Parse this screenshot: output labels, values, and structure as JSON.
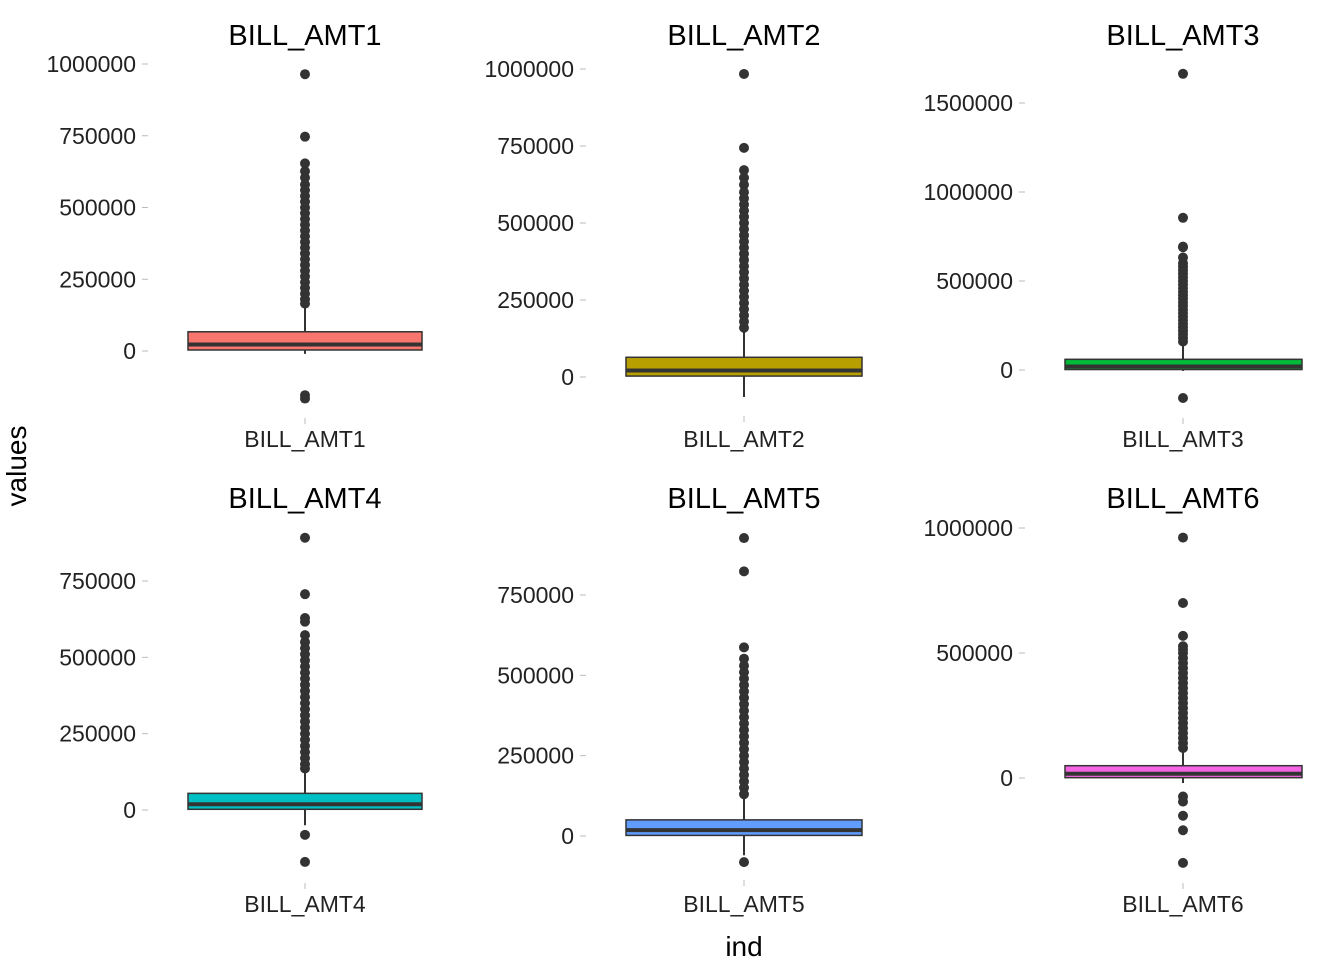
{
  "figure": {
    "xlabel": "ind",
    "ylabel": "values"
  },
  "chart_data": [
    {
      "type": "box",
      "title": "BILL_AMT1",
      "category": "BILL_AMT1",
      "color": "#F8766D",
      "ylim": [
        -175000,
        1000000
      ],
      "yticks": [
        0,
        250000,
        500000,
        750000,
        1000000
      ],
      "box": {
        "q1": 3500,
        "median": 22500,
        "q3": 67000,
        "whisker_low": -10000,
        "whisker_high": 162000
      },
      "outliers": [
        964500,
        746800,
        653700,
        626600,
        604000,
        580000,
        560000,
        540000,
        520000,
        500000,
        480000,
        460000,
        440000,
        420000,
        400000,
        380000,
        360000,
        340000,
        320000,
        300000,
        280000,
        260000,
        240000,
        220000,
        200000,
        180000,
        165000,
        -154000,
        -165600
      ]
    },
    {
      "type": "box",
      "title": "BILL_AMT2",
      "category": "BILL_AMT2",
      "color": "#B79F00",
      "ylim": [
        -65000,
        1000000
      ],
      "yticks": [
        0,
        250000,
        500000,
        750000,
        1000000
      ],
      "box": {
        "q1": 3000,
        "median": 21200,
        "q3": 64000,
        "whisker_low": -65000,
        "whisker_high": 155000
      },
      "outliers": [
        983900,
        743900,
        671500,
        646800,
        624500,
        600000,
        580000,
        560000,
        540000,
        520000,
        500000,
        480000,
        460000,
        440000,
        420000,
        400000,
        380000,
        360000,
        340000,
        320000,
        300000,
        280000,
        260000,
        240000,
        220000,
        200000,
        180000,
        160000
      ]
    },
    {
      "type": "box",
      "title": "BILL_AMT3",
      "category": "BILL_AMT3",
      "color": "#00BA38",
      "ylim": [
        -160000,
        1700000
      ],
      "yticks": [
        0,
        500000,
        1000000,
        1500000
      ],
      "box": {
        "q1": 2600,
        "median": 20000,
        "q3": 60000,
        "whisker_low": -5000,
        "whisker_high": 146000
      },
      "outliers": [
        1664100,
        855100,
        693100,
        689600,
        632000,
        600000,
        580000,
        560000,
        540000,
        520000,
        500000,
        480000,
        460000,
        440000,
        420000,
        400000,
        380000,
        360000,
        340000,
        320000,
        300000,
        280000,
        260000,
        240000,
        220000,
        200000,
        180000,
        160000,
        -157300
      ]
    },
    {
      "type": "box",
      "title": "BILL_AMT4",
      "category": "BILL_AMT4",
      "color": "#00BFC4",
      "ylim": [
        -170000,
        900000
      ],
      "yticks": [
        0,
        250000,
        500000,
        750000
      ],
      "box": {
        "q1": 2300,
        "median": 19000,
        "q3": 54500,
        "whisker_low": -50000,
        "whisker_high": 132000
      },
      "outliers": [
        891600,
        706900,
        628700,
        616800,
        572800,
        550000,
        530000,
        510000,
        490000,
        470000,
        450000,
        430000,
        410000,
        390000,
        370000,
        350000,
        330000,
        310000,
        290000,
        270000,
        250000,
        230000,
        210000,
        190000,
        170000,
        150000,
        136000,
        -81300,
        -170000
      ]
    },
    {
      "type": "box",
      "title": "BILL_AMT5",
      "category": "BILL_AMT5",
      "color": "#619CFF",
      "ylim": [
        -81300,
        927200
      ],
      "yticks": [
        0,
        250000,
        500000,
        750000
      ],
      "box": {
        "q1": 1800,
        "median": 18100,
        "q3": 50200,
        "whisker_low": -60000,
        "whisker_high": 122000
      },
      "outliers": [
        927200,
        823500,
        587100,
        551700,
        530000,
        510000,
        490000,
        470000,
        450000,
        430000,
        410000,
        390000,
        370000,
        350000,
        330000,
        310000,
        290000,
        270000,
        250000,
        230000,
        210000,
        190000,
        170000,
        150000,
        130000,
        -81300
      ]
    },
    {
      "type": "box",
      "title": "BILL_AMT6",
      "category": "BILL_AMT6",
      "color": "#F564E3",
      "ylim": [
        -339600,
        1000000
      ],
      "yticks": [
        0,
        500000,
        1000000
      ],
      "box": {
        "q1": 1300,
        "median": 17100,
        "q3": 49200,
        "whisker_low": -20000,
        "whisker_high": 115900
      },
      "outliers": [
        961700,
        699900,
        568600,
        527100,
        513800,
        500000,
        480000,
        460000,
        440000,
        420000,
        400000,
        380000,
        360000,
        340000,
        320000,
        300000,
        280000,
        260000,
        240000,
        220000,
        200000,
        180000,
        160000,
        140000,
        120000,
        -73900,
        -94600,
        -150900,
        -209100,
        -339600
      ]
    }
  ]
}
